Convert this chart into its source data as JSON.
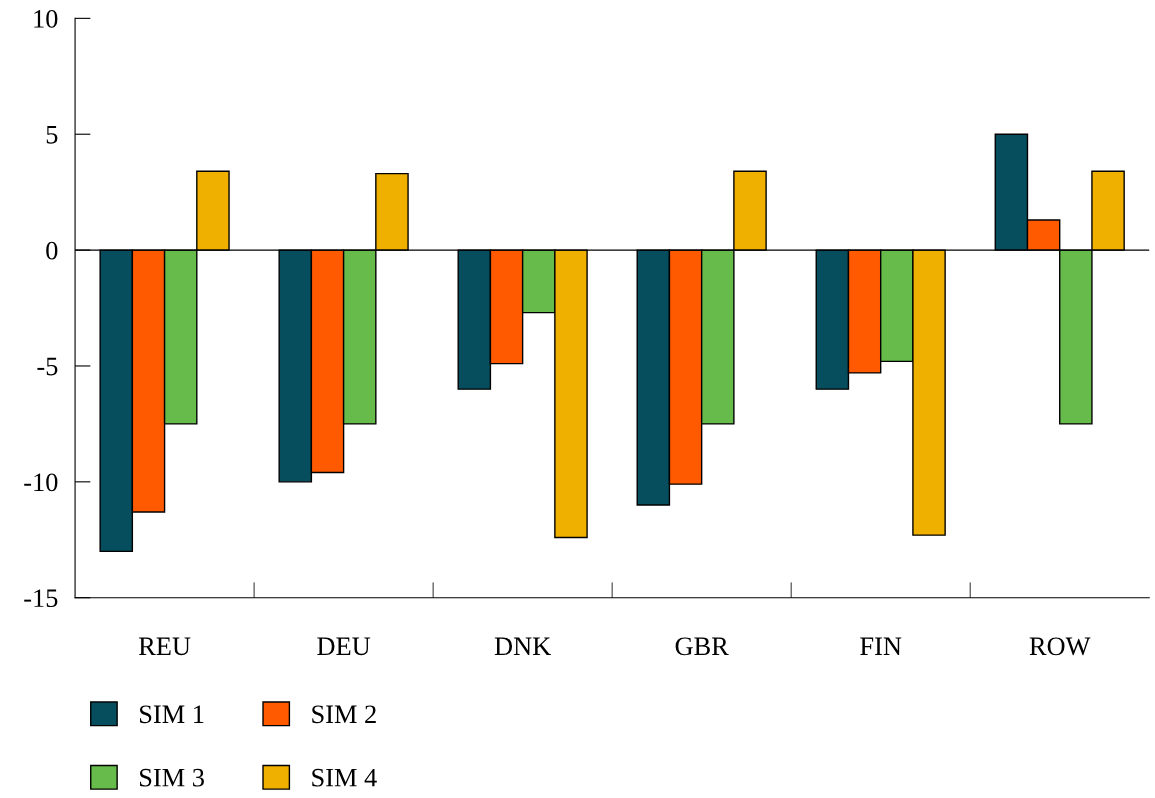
{
  "chart_data": {
    "type": "bar",
    "categories": [
      "REU",
      "DEU",
      "DNK",
      "GBR",
      "FIN",
      "ROW"
    ],
    "series": [
      {
        "name": "SIM 1",
        "color": "#064d5e",
        "values": [
          -13.0,
          -10.0,
          -6.0,
          -11.0,
          -6.0,
          5.0
        ]
      },
      {
        "name": "SIM 2",
        "color": "#ff5a00",
        "values": [
          -11.3,
          -9.6,
          -4.9,
          -10.1,
          -5.3,
          1.3
        ]
      },
      {
        "name": "SIM 3",
        "color": "#66bb4a",
        "values": [
          -7.5,
          -7.5,
          -2.7,
          -7.5,
          -4.8,
          -7.5
        ]
      },
      {
        "name": "SIM 4",
        "color": "#f0b000",
        "values": [
          3.4,
          3.3,
          -12.4,
          3.4,
          -12.3,
          3.4
        ]
      }
    ],
    "ylim": [
      -15,
      10
    ],
    "yticks": [
      {
        "value": 10,
        "label": "10"
      },
      {
        "value": 5,
        "label": "5"
      },
      {
        "value": 0,
        "label": "0"
      },
      {
        "value": -5,
        "label": "-5"
      },
      {
        "value": -10,
        "label": "-10"
      },
      {
        "value": -15,
        "label": "-15"
      }
    ],
    "ref_lines": [
      {
        "axis": "y",
        "value": 0,
        "color": "#000000"
      }
    ],
    "grid": false,
    "legend": "bottom left"
  }
}
